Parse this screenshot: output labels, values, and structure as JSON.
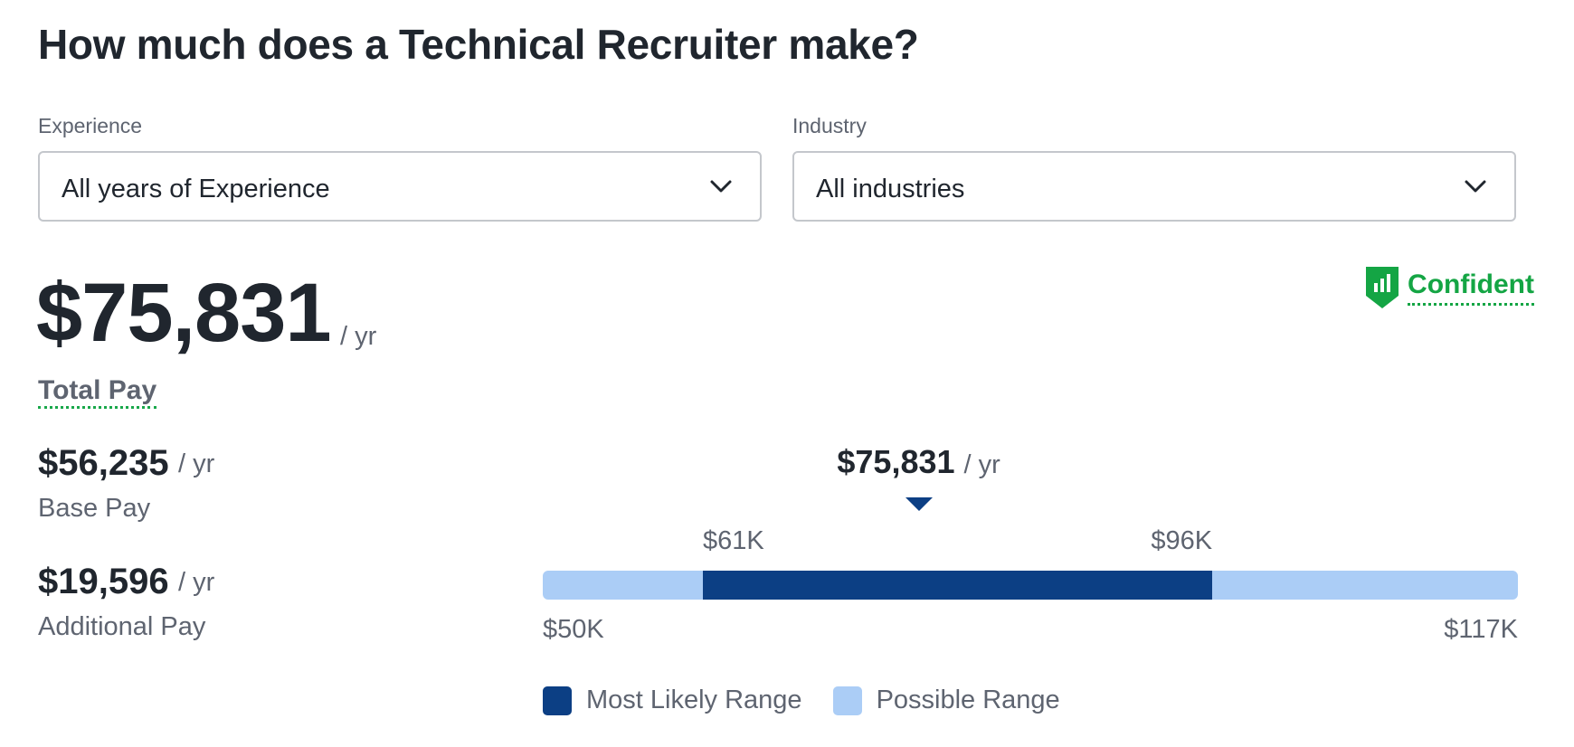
{
  "header": {
    "title": "How much does a Technical Recruiter make?"
  },
  "filters": {
    "experience": {
      "label": "Experience",
      "value": "All years of Experience",
      "icon": "chevron-down-icon"
    },
    "industry": {
      "label": "Industry",
      "value": "All industries",
      "icon": "chevron-down-icon"
    }
  },
  "confidence": {
    "label": "Confident",
    "icon": "bar-chart-shield-icon",
    "color": "#14a544"
  },
  "pay": {
    "total": "$75,831",
    "total_unit": "/ yr",
    "total_label": "Total Pay",
    "base": "$56,235",
    "base_unit": "/ yr",
    "base_label": "Base Pay",
    "additional": "$19,596",
    "additional_unit": "/ yr",
    "additional_label": "Additional Pay"
  },
  "range": {
    "median_label": "$75,831",
    "median_unit": "/ yr",
    "min_label": "$50K",
    "max_label": "$117K",
    "likely_low_label": "$61K",
    "likely_high_label": "$96K",
    "min": 50000,
    "max": 117000,
    "likely_low": 61000,
    "likely_high": 96000,
    "median": 75831,
    "colors": {
      "likely": "#0c3f84",
      "possible": "#abcdf6"
    }
  },
  "legend": {
    "likely": "Most Likely Range",
    "possible": "Possible Range"
  }
}
